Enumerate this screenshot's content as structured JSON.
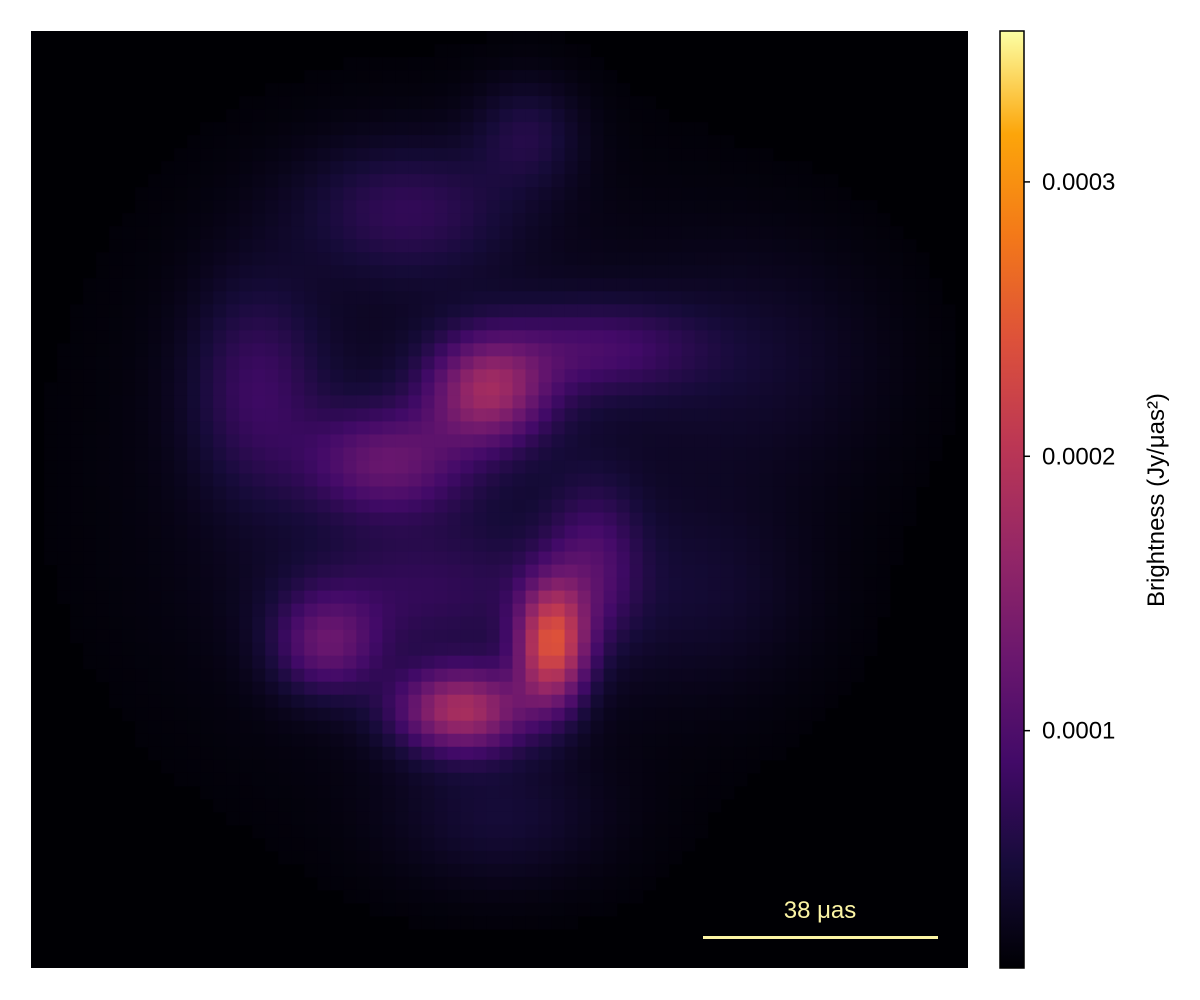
{
  "chart_data": {
    "type": "heatmap",
    "colormap": "inferno",
    "colorbar": {
      "label": "Brightness (Jy/μas²)",
      "range": [
        1.35e-05,
        0.000355
      ],
      "ticks": [
        {
          "value": 0.0001,
          "label": "0.0001"
        },
        {
          "value": 0.0002,
          "label": "0.0002"
        },
        {
          "value": 0.0003,
          "label": "0.0003"
        }
      ]
    },
    "scale_bar": {
      "label": "38 μas",
      "color": "#fcf5a5"
    },
    "grid_size": [
      72,
      72
    ],
    "components": [
      {
        "name": "bright-knot",
        "x": 0.556,
        "y": 0.655,
        "sx": 0.026,
        "sy": 0.045,
        "amp": 0.000195
      },
      {
        "name": "lower-arc",
        "x": 0.46,
        "y": 0.725,
        "sx": 0.05,
        "sy": 0.032,
        "amp": 0.000155
      },
      {
        "name": "left-lower",
        "x": 0.315,
        "y": 0.655,
        "sx": 0.04,
        "sy": 0.038,
        "amp": 8.5e-05
      },
      {
        "name": "right-arc",
        "x": 0.6,
        "y": 0.57,
        "sx": 0.035,
        "sy": 0.06,
        "amp": 6e-05
      },
      {
        "name": "upper-knot",
        "x": 0.488,
        "y": 0.385,
        "sx": 0.045,
        "sy": 0.04,
        "amp": 0.00013
      },
      {
        "name": "middle-band",
        "x": 0.38,
        "y": 0.46,
        "sx": 0.06,
        "sy": 0.04,
        "amp": 8.5e-05
      },
      {
        "name": "upper-band",
        "x": 0.6,
        "y": 0.34,
        "sx": 0.08,
        "sy": 0.035,
        "amp": 6e-05
      },
      {
        "name": "left-arc",
        "x": 0.24,
        "y": 0.38,
        "sx": 0.05,
        "sy": 0.08,
        "amp": 5.5e-05
      },
      {
        "name": "top-arc",
        "x": 0.4,
        "y": 0.19,
        "sx": 0.08,
        "sy": 0.05,
        "amp": 5e-05
      },
      {
        "name": "top-right",
        "x": 0.53,
        "y": 0.11,
        "sx": 0.04,
        "sy": 0.04,
        "amp": 4e-05
      },
      {
        "name": "lower-band",
        "x": 0.42,
        "y": 0.6,
        "sx": 0.1,
        "sy": 0.05,
        "amp": 4e-05
      },
      {
        "name": "right-halo",
        "x": 0.78,
        "y": 0.35,
        "sx": 0.1,
        "sy": 0.09,
        "amp": 2.2e-05
      },
      {
        "name": "right-lower-halo",
        "x": 0.72,
        "y": 0.6,
        "sx": 0.08,
        "sy": 0.07,
        "amp": 2.2e-05
      },
      {
        "name": "bottom-halo",
        "x": 0.5,
        "y": 0.84,
        "sx": 0.08,
        "sy": 0.05,
        "amp": 3e-05
      },
      {
        "name": "central-halo",
        "x": 0.45,
        "y": 0.47,
        "sx": 0.22,
        "sy": 0.22,
        "amp": 2.5e-05
      }
    ]
  }
}
